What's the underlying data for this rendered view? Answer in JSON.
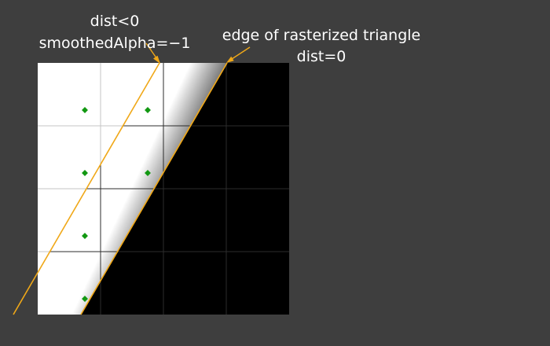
{
  "labels": {
    "dist_negative": "dist<0",
    "smoothed_alpha": "smoothedAlpha=−1",
    "edge_title": "edge of rasterized triangle",
    "dist_zero": "dist=0"
  },
  "colors": {
    "background": "#3e3e3e",
    "inside_fill": "#ffffff",
    "outside_fill": "#000000",
    "edge_line": "#f0a818",
    "pixel_center": "#129812",
    "grid_on_white": "#c4c4c4",
    "grid_on_black": "#2c2c2c"
  },
  "grid": {
    "columns": 4,
    "rows": 4
  }
}
